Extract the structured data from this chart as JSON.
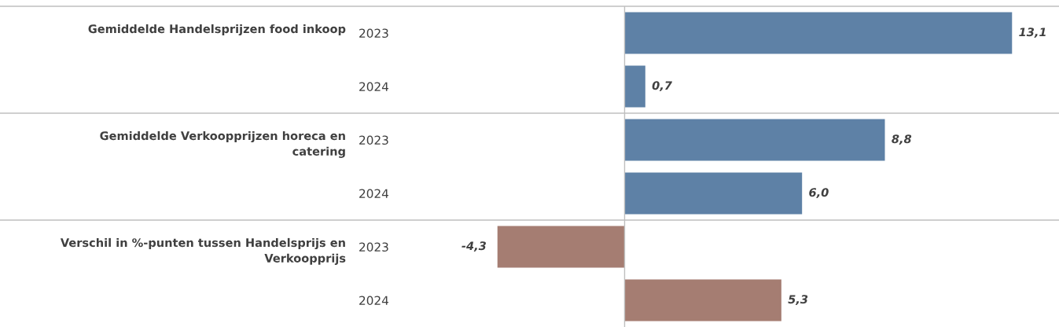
{
  "chart_data": {
    "type": "bar",
    "orientation": "horizontal",
    "categories": [
      "2023",
      "2024",
      "2023",
      "2024",
      "2023",
      "2024"
    ],
    "values": [
      13.1,
      0.7,
      8.8,
      6.0,
      -4.3,
      5.3
    ],
    "colors": [
      "#5e81a6",
      "#5e81a6",
      "#5e81a6",
      "#5e81a6",
      "#a57d72",
      "#a57d72"
    ],
    "value_labels": [
      "13,1",
      "0,7",
      "8,8",
      "6,0",
      "-4,3",
      "5,3"
    ],
    "annotations": [
      "Gemiddelde Handelsprijzen food inkoop",
      "Gemiddelde Verkoopprijzen horeca en\ncatering",
      "Verschil in %-punten tussen Handelsprijs en\nVerkoopprijs"
    ],
    "grid": false,
    "legend": false
  }
}
